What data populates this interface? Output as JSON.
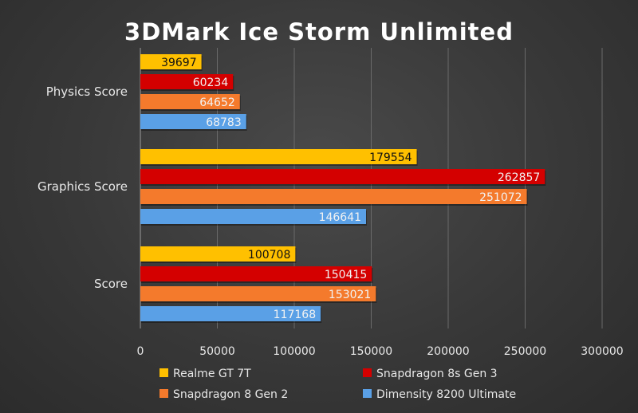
{
  "chart_data": {
    "type": "bar",
    "orientation": "horizontal",
    "title": "3DMark Ice Storm Unlimited",
    "categories": [
      "Physics Score",
      "Graphics Score",
      "Score"
    ],
    "series": [
      {
        "name": "Realme GT 7T",
        "color": "#ffc000",
        "label_color": "#111111",
        "values": [
          39697,
          179554,
          100708
        ]
      },
      {
        "name": "Snapdragon 8s Gen 3",
        "color": "#d40000",
        "label_color": "#f2f2f2",
        "values": [
          60234,
          262857,
          150415
        ]
      },
      {
        "name": "Snapdragon 8 Gen 2",
        "color": "#f47a2c",
        "label_color": "#f2f2f2",
        "values": [
          64652,
          251072,
          153021
        ]
      },
      {
        "name": "Dimensity 8200 Ultimate",
        "color": "#5aa0e6",
        "label_color": "#f2f2f2",
        "values": [
          68783,
          146641,
          117168
        ]
      }
    ],
    "xlim": [
      0,
      300000
    ],
    "xticks": [
      "0",
      "50000",
      "100000",
      "150000",
      "200000",
      "250000",
      "300000"
    ],
    "grid": true,
    "legend_position": "bottom",
    "xlabel": "",
    "ylabel": ""
  }
}
